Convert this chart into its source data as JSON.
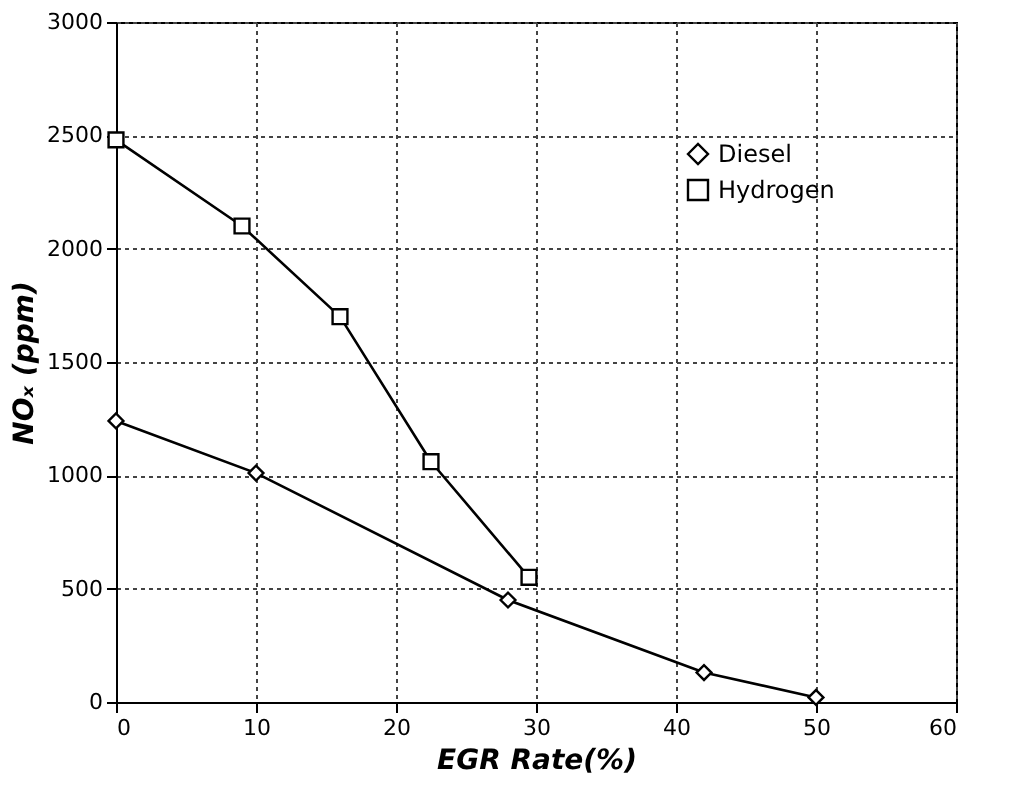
{
  "chart_data": {
    "type": "line",
    "xlabel": "EGR Rate(%)",
    "ylabel": "NOₓ (ppm)",
    "xlim": [
      0,
      60
    ],
    "xticks": [
      0,
      10,
      20,
      30,
      40,
      50,
      60
    ],
    "ylim": [
      0,
      3000
    ],
    "yticks": [
      0,
      500,
      1000,
      1500,
      2000,
      2500,
      3000
    ],
    "grid": true,
    "legend": "top right",
    "line_style": "solid",
    "series": [
      {
        "name": "Diesel",
        "color": "#000000",
        "marker": "diamond",
        "x": [
          0,
          10,
          28,
          42,
          50
        ],
        "values": [
          1240,
          1010,
          450,
          130,
          20
        ]
      },
      {
        "name": "Hydrogen",
        "color": "#000000",
        "marker": "square",
        "x": [
          0,
          9,
          16,
          22.5,
          29.5
        ],
        "values": [
          2480,
          2100,
          1700,
          1060,
          550
        ]
      }
    ]
  }
}
